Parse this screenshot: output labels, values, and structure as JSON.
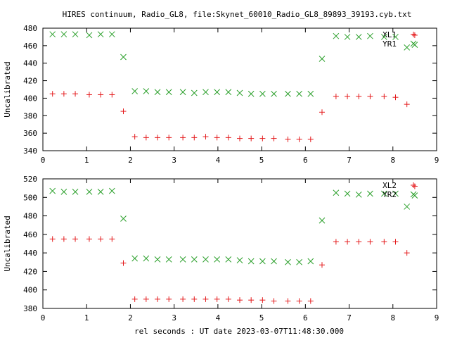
{
  "title": "HIRES continuum, Radio_GL8, file:Skynet_60010_Radio_GL8_89893_39193.cyb.txt",
  "xlabel": "rel seconds : UT date 2023-03-07T11:48:30.000",
  "colors": {
    "plus": "#e41a1c",
    "cross": "#2ca02c"
  },
  "chart_data": [
    {
      "type": "scatter",
      "ylabel": "Uncalibrated",
      "xlim": [
        0,
        9
      ],
      "ylim": [
        340,
        480
      ],
      "xticks": [
        0,
        1,
        2,
        3,
        4,
        5,
        6,
        7,
        8,
        9
      ],
      "yticks": [
        340,
        360,
        380,
        400,
        420,
        440,
        460,
        480
      ],
      "legend_position": "top-right",
      "series": [
        {
          "name": "XL1",
          "marker": "plus",
          "x": [
            0.22,
            0.48,
            0.74,
            1.06,
            1.32,
            1.58,
            1.84,
            2.1,
            2.36,
            2.62,
            2.88,
            3.2,
            3.46,
            3.72,
            3.98,
            4.24,
            4.5,
            4.76,
            5.02,
            5.28,
            5.6,
            5.86,
            6.12,
            6.38,
            6.7,
            6.96,
            7.22,
            7.48,
            7.8,
            8.06,
            8.32,
            8.5
          ],
          "y": [
            405,
            405,
            405,
            404,
            404,
            404,
            385,
            356,
            355,
            355,
            355,
            355,
            355,
            356,
            355,
            355,
            354,
            354,
            354,
            354,
            353,
            353,
            353,
            384,
            402,
            402,
            402,
            402,
            402,
            401,
            393,
            472
          ]
        },
        {
          "name": "YR1",
          "marker": "cross",
          "x": [
            0.22,
            0.48,
            0.74,
            1.06,
            1.32,
            1.58,
            1.84,
            2.1,
            2.36,
            2.62,
            2.88,
            3.2,
            3.46,
            3.72,
            3.98,
            4.24,
            4.5,
            4.76,
            5.02,
            5.28,
            5.6,
            5.86,
            6.12,
            6.38,
            6.7,
            6.96,
            7.22,
            7.48,
            7.8,
            8.06,
            8.32,
            8.5
          ],
          "y": [
            473,
            473,
            473,
            472,
            473,
            473,
            447,
            408,
            408,
            407,
            407,
            407,
            406,
            407,
            407,
            407,
            406,
            405,
            405,
            405,
            405,
            405,
            405,
            445,
            471,
            470,
            470,
            471,
            470,
            470,
            458,
            461
          ]
        }
      ]
    },
    {
      "type": "scatter",
      "ylabel": "Uncalibrated",
      "xlim": [
        0,
        9
      ],
      "ylim": [
        380,
        520
      ],
      "xticks": [
        0,
        1,
        2,
        3,
        4,
        5,
        6,
        7,
        8,
        9
      ],
      "yticks": [
        380,
        400,
        420,
        440,
        460,
        480,
        500,
        520
      ],
      "legend_position": "top-right",
      "series": [
        {
          "name": "XL2",
          "marker": "plus",
          "x": [
            0.22,
            0.48,
            0.74,
            1.06,
            1.32,
            1.58,
            1.84,
            2.1,
            2.36,
            2.62,
            2.88,
            3.2,
            3.46,
            3.72,
            3.98,
            4.24,
            4.5,
            4.76,
            5.02,
            5.28,
            5.6,
            5.86,
            6.12,
            6.38,
            6.7,
            6.96,
            7.22,
            7.48,
            7.8,
            8.06,
            8.32,
            8.5
          ],
          "y": [
            455,
            455,
            455,
            455,
            455,
            455,
            429,
            390,
            390,
            390,
            390,
            390,
            390,
            390,
            390,
            390,
            389,
            389,
            389,
            388,
            388,
            388,
            388,
            427,
            452,
            452,
            452,
            452,
            452,
            452,
            440,
            512
          ]
        },
        {
          "name": "YR2",
          "marker": "cross",
          "x": [
            0.22,
            0.48,
            0.74,
            1.06,
            1.32,
            1.58,
            1.84,
            2.1,
            2.36,
            2.62,
            2.88,
            3.2,
            3.46,
            3.72,
            3.98,
            4.24,
            4.5,
            4.76,
            5.02,
            5.28,
            5.6,
            5.86,
            6.12,
            6.38,
            6.7,
            6.96,
            7.22,
            7.48,
            7.8,
            8.06,
            8.32,
            8.5
          ],
          "y": [
            507,
            506,
            506,
            506,
            506,
            507,
            477,
            434,
            434,
            433,
            433,
            433,
            433,
            433,
            433,
            433,
            432,
            431,
            431,
            431,
            430,
            430,
            431,
            475,
            505,
            504,
            503,
            504,
            504,
            504,
            490,
            502
          ]
        }
      ]
    }
  ]
}
